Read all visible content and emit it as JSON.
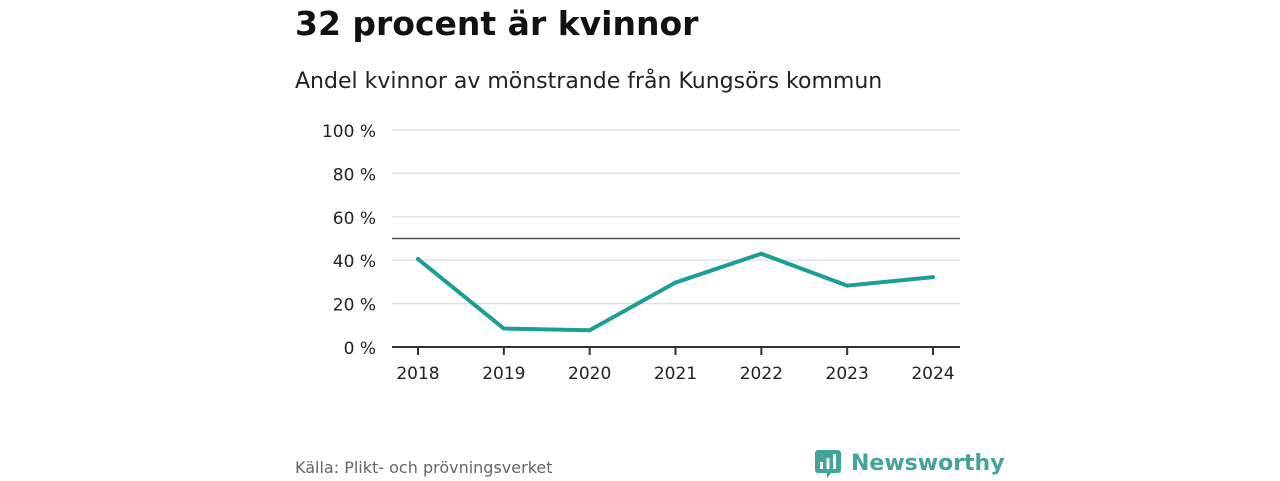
{
  "header": {
    "title": "32 procent är kvinnor",
    "subtitle": "Andel kvinnor av mönstrande från Kungsörs kommun"
  },
  "footer": {
    "source": "Källa: Plikt- och prövningsverket",
    "brand": "Newsworthy"
  },
  "colors": {
    "line": "#1a9e95",
    "grid": "#dddddd",
    "axis": "#333333",
    "reference": "#555555",
    "brand": "#44a39a"
  },
  "chart_data": {
    "type": "line",
    "title": "32 procent är kvinnor",
    "subtitle": "Andel kvinnor av mönstrande från Kungsörs kommun",
    "xlabel": "",
    "ylabel": "",
    "x": [
      "2018",
      "2019",
      "2020",
      "2021",
      "2022",
      "2023",
      "2024"
    ],
    "series": [
      {
        "name": "Andel kvinnor",
        "values": [
          40.5,
          8.5,
          7.7,
          29.7,
          43.0,
          28.3,
          32.2
        ]
      }
    ],
    "ylim": [
      0,
      100
    ],
    "yticks": [
      0,
      20,
      40,
      60,
      80,
      100
    ],
    "ytick_labels": [
      "0 %",
      "20 %",
      "40 %",
      "60 %",
      "80 %",
      "100 %"
    ],
    "reference_line": 50,
    "grid": true,
    "legend": "none"
  }
}
